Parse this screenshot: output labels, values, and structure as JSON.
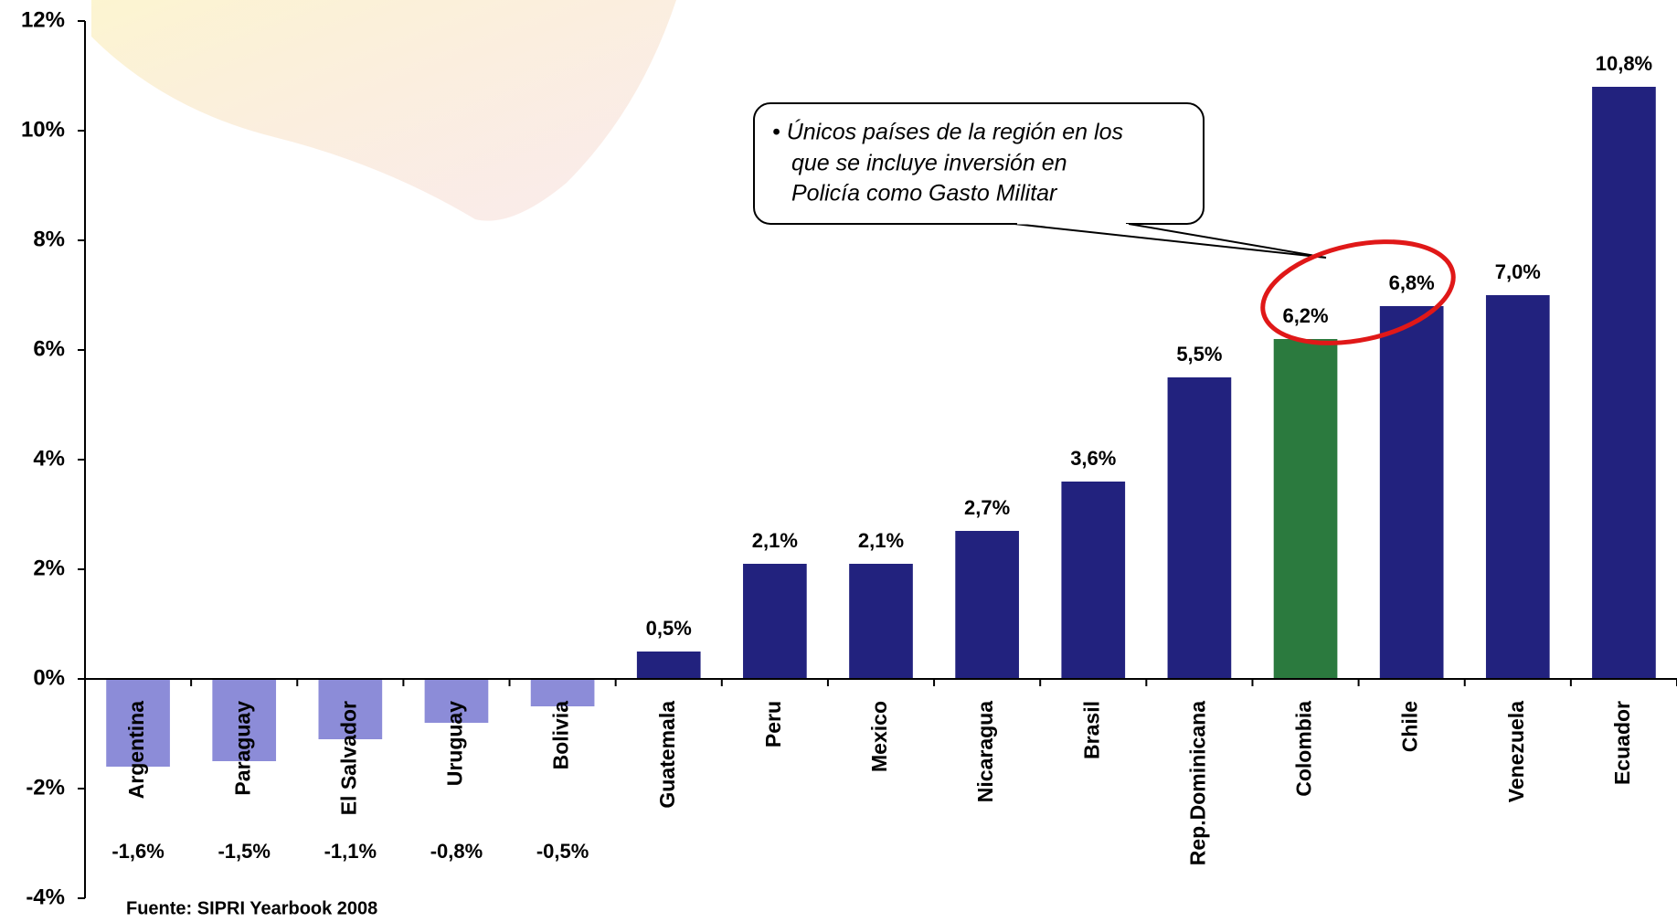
{
  "chart_data": {
    "type": "bar",
    "categories": [
      "Argentina",
      "Paraguay",
      "El Salvador",
      "Uruguay",
      "Bolivia",
      "Guatemala",
      "Peru",
      "Mexico",
      "Nicaragua",
      "Brasil",
      "Rep.Dominicana",
      "Colombia",
      "Chile",
      "Venezuela",
      "Ecuador"
    ],
    "values": [
      -1.6,
      -1.5,
      -1.1,
      -0.8,
      -0.5,
      0.5,
      2.1,
      2.1,
      2.7,
      3.6,
      5.5,
      6.2,
      6.8,
      7.0,
      10.8
    ],
    "value_labels": [
      "-1,6%",
      "-1,5%",
      "-1,1%",
      "-0,8%",
      "-0,5%",
      "0,5%",
      "2,1%",
      "2,1%",
      "2,7%",
      "3,6%",
      "5,5%",
      "6,2%",
      "6,8%",
      "7,0%",
      "10,8%"
    ],
    "colors": [
      "#8c8cd8",
      "#8c8cd8",
      "#8c8cd8",
      "#8c8cd8",
      "#8c8cd8",
      "#22227e",
      "#22227e",
      "#22227e",
      "#22227e",
      "#22227e",
      "#22227e",
      "#2b7a3e",
      "#22227e",
      "#22227e",
      "#22227e"
    ],
    "ylim": [
      -4,
      12
    ],
    "yticks": [
      {
        "value": -4,
        "label": "-4%"
      },
      {
        "value": -2,
        "label": "-2%"
      },
      {
        "value": 0,
        "label": "0%"
      },
      {
        "value": 2,
        "label": "2%"
      },
      {
        "value": 4,
        "label": "4%"
      },
      {
        "value": 6,
        "label": "6%"
      },
      {
        "value": 8,
        "label": "8%"
      },
      {
        "value": 10,
        "label": "10%"
      },
      {
        "value": 12,
        "label": "12%"
      }
    ],
    "annotation": [
      "• Únicos países de la región en los",
      "que se incluye inversión en",
      "Policía como Gasto Militar"
    ],
    "source": "Fuente: SIPRI Yearbook 2008"
  }
}
